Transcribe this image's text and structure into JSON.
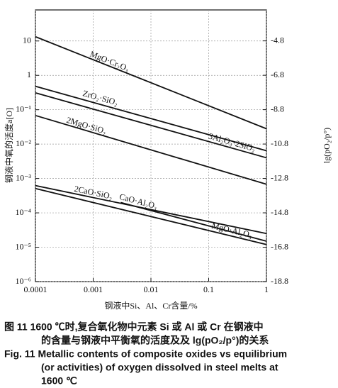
{
  "chart_data": {
    "type": "line",
    "xscale": "log",
    "yscale": "log",
    "xlim": [
      0.0001,
      1
    ],
    "xticks": [
      0.0001,
      0.001,
      0.01,
      0.1,
      1
    ],
    "ylim": [
      1e-06,
      80
    ],
    "yticks": [
      {
        "value": 10,
        "label": "10"
      },
      {
        "value": 1,
        "label": "1"
      },
      {
        "value": 0.1,
        "label": "10⁻¹"
      },
      {
        "value": 0.01,
        "label": "10⁻²"
      },
      {
        "value": 0.001,
        "label": "10⁻³"
      },
      {
        "value": 0.0001,
        "label": "10⁻⁴"
      },
      {
        "value": 1e-05,
        "label": "10⁻⁵"
      },
      {
        "value": 1e-06,
        "label": "10⁻⁶"
      }
    ],
    "y2lim": [
      -18.8,
      -3.0
    ],
    "y2ticks": [
      -4.8,
      -6.8,
      -8.8,
      -10.8,
      -12.8,
      -14.8,
      -16.8,
      -18.8
    ],
    "grid": true,
    "color": "#111111",
    "xlabel": "钢液中Si、Al、Cr含量/%",
    "ylabel": "钢液中氧的活度a[O]",
    "y2label": "lg(pO₂/p°)",
    "series": [
      {
        "name": "MgO·Cr₂O₃",
        "x": [
          0.0001,
          1
        ],
        "values": [
          13.3,
          0.028
        ]
      },
      {
        "name": "ZrO₂·SiO₂",
        "x": [
          0.0001,
          1
        ],
        "values": [
          0.48,
          0.0064
        ]
      },
      {
        "name": "3Al₂O₃·2SiO₂",
        "x": [
          0.0001,
          1
        ],
        "values": [
          0.31,
          0.004
        ]
      },
      {
        "name": "2MgO·SiO₂",
        "x": [
          0.0001,
          1
        ],
        "values": [
          0.068,
          0.00068
        ]
      },
      {
        "name": "2CaO·SiO₂",
        "x": [
          0.0001,
          1
        ],
        "values": [
          0.00062,
          2.5e-05
        ]
      },
      {
        "name": "CaO·Al₂O₃",
        "x": [
          0.003,
          1
        ],
        "values": [
          0.0002,
          1.5e-05
        ]
      },
      {
        "name": "MgO·Al₂O₃",
        "x": [
          0.0001,
          1
        ],
        "values": [
          0.00051,
          1.2e-05
        ]
      }
    ],
    "caption": [
      "图 11   1600 ℃时,复合氧化物中元素 Si 或 Al 或 Cr 在钢液中",
      "的含量与钢液中平衡氧的活度及及 lg(pO₂/p°)的关系",
      "Fig. 11  Metallic contents of composite oxides vs equilibrium",
      "(or activities) of oxygen dissolved in steel melts at",
      "1600 ℃"
    ]
  }
}
